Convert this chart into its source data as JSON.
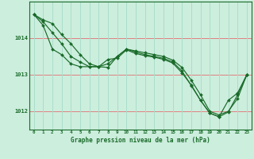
{
  "title": "Graphe pression niveau de la mer (hPa)",
  "background_color": "#cceedd",
  "grid_color_h": "#f08080",
  "grid_color_v": "#aaddcc",
  "line_color": "#1a6b2a",
  "marker_color": "#1a6b2a",
  "xlim": [
    -0.5,
    23.5
  ],
  "ylim": [
    1011.5,
    1015.0
  ],
  "yticks": [
    1012,
    1013,
    1014
  ],
  "xticks": [
    0,
    1,
    2,
    3,
    4,
    5,
    6,
    7,
    8,
    9,
    10,
    11,
    12,
    13,
    14,
    15,
    16,
    17,
    18,
    19,
    20,
    21,
    22,
    23
  ],
  "series1": [
    1014.65,
    1014.5,
    1014.4,
    1014.1,
    1013.85,
    1013.55,
    1013.3,
    1013.22,
    1013.2,
    1013.5,
    1013.7,
    1013.65,
    1013.6,
    1013.55,
    1013.5,
    1013.4,
    1013.2,
    1012.85,
    1012.45,
    1012.0,
    1011.9,
    1012.0,
    1012.35,
    1013.0
  ],
  "series2": [
    1014.65,
    1014.45,
    1014.15,
    1013.85,
    1013.5,
    1013.35,
    1013.22,
    1013.22,
    1013.3,
    1013.5,
    1013.7,
    1013.62,
    1013.55,
    1013.5,
    1013.45,
    1013.35,
    1013.1,
    1012.7,
    1012.3,
    1011.95,
    1011.85,
    1012.3,
    1012.5,
    1013.0
  ],
  "series3": [
    1014.65,
    1014.35,
    1013.7,
    1013.55,
    1013.3,
    1013.22,
    1013.22,
    1013.22,
    1013.42,
    1013.45,
    1013.68,
    1013.58,
    1013.52,
    1013.48,
    1013.42,
    1013.32,
    1013.05,
    1012.72,
    1012.3,
    1011.95,
    1011.85,
    1011.98,
    1012.45,
    1013.0
  ]
}
